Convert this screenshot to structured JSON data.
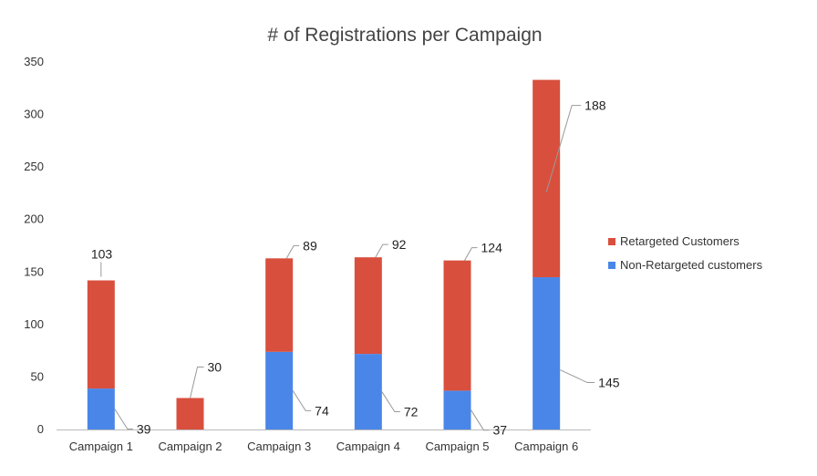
{
  "chart_data": {
    "type": "bar",
    "stacked": true,
    "title": "# of Registrations per Campaign",
    "xlabel": "",
    "ylabel": "",
    "ylim": [
      0,
      350
    ],
    "yticks": [
      0,
      50,
      100,
      150,
      200,
      250,
      300,
      350
    ],
    "categories": [
      "Campaign 1",
      "Campaign 2",
      "Campaign 3",
      "Campaign 4",
      "Campaign 5",
      "Campaign 6"
    ],
    "series": [
      {
        "name": "Non-Retargeted customers",
        "color": "#4A86E8",
        "values": [
          39,
          0,
          74,
          72,
          37,
          145
        ]
      },
      {
        "name": "Retargeted Customers",
        "color": "#D94F3D",
        "values": [
          103,
          30,
          89,
          92,
          124,
          188
        ]
      }
    ],
    "grid": false,
    "legend_position": "right"
  }
}
